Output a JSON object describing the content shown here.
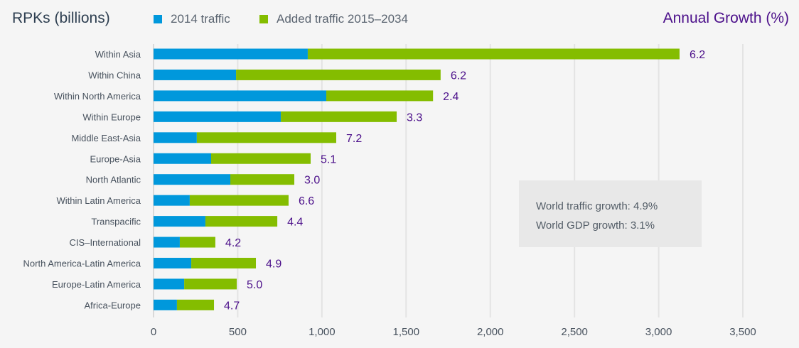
{
  "header": {
    "title": "RPKs (billions)",
    "growth_title": "Annual Growth (%)"
  },
  "legend": [
    {
      "label": "2014 traffic",
      "color": "#0098dc"
    },
    {
      "label": "Added traffic 2015–2034",
      "color": "#84bd00"
    }
  ],
  "info_box": {
    "line1": "World traffic growth: 4.9%",
    "line2": "World GDP growth: 3.1%"
  },
  "chart_data": {
    "type": "bar",
    "orientation": "horizontal",
    "stacked": true,
    "title": "RPKs (billions)",
    "xlabel": "",
    "ylabel": "",
    "xlim": [
      0,
      3500
    ],
    "xticks": [
      0,
      500,
      1000,
      1500,
      2000,
      2500,
      3000,
      3500
    ],
    "xtick_labels": [
      "0",
      "500",
      "1,000",
      "1,500",
      "2,000",
      "2,500",
      "3,000",
      "3,500"
    ],
    "grid": "vertical",
    "legend_position": "top-left",
    "categories": [
      "Within Asia",
      "Within China",
      "Within North America",
      "Within Europe",
      "Middle East-Asia",
      "Europe-Asia",
      "North Atlantic",
      "Within Latin America",
      "Transpacific",
      "CIS–International",
      "North America-Latin America",
      "Europe-Latin America",
      "Africa-Europe"
    ],
    "series": [
      {
        "name": "2014 traffic",
        "color": "#0098dc",
        "values": [
          916,
          490,
          1026,
          756,
          257,
          342,
          456,
          215,
          308,
          156,
          224,
          182,
          139
        ]
      },
      {
        "name": "Added traffic 2015–2034",
        "color": "#84bd00",
        "values": [
          2208,
          1215,
          634,
          688,
          828,
          591,
          380,
          587,
          427,
          211,
          384,
          312,
          220
        ]
      }
    ],
    "annual_growth_pct": [
      "6.2",
      "6.2",
      "2.4",
      "3.3",
      "7.2",
      "5.1",
      "3.0",
      "6.6",
      "4.4",
      "4.2",
      "4.9",
      "5.0",
      "4.7"
    ],
    "annotations": [
      "World traffic growth: 4.9%",
      "World GDP growth: 3.1%"
    ]
  }
}
